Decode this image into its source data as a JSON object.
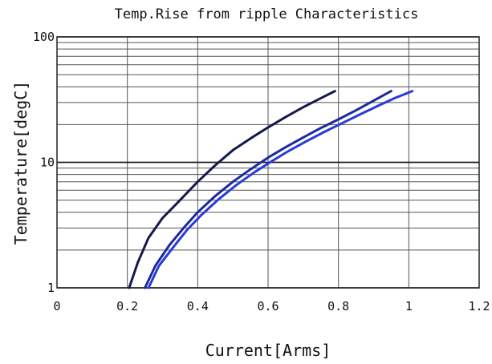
{
  "chart_data": {
    "type": "line",
    "title": "Temp.Rise from ripple Characteristics",
    "xlabel": "Current[Arms]",
    "ylabel": "Temperature[degC]",
    "xlim": [
      0,
      1.2
    ],
    "ylim": [
      1,
      100
    ],
    "yscale": "log",
    "grid": true,
    "x_ticks": [
      "0",
      "0.2",
      "0.4",
      "0.6",
      "0.8",
      "1",
      "1.2"
    ],
    "y_ticks": [
      "1",
      "10",
      "100"
    ],
    "series": [
      {
        "color": "#141a4e",
        "x": [
          0.205,
          0.23,
          0.26,
          0.3,
          0.35,
          0.4,
          0.45,
          0.5,
          0.55,
          0.6,
          0.65,
          0.7,
          0.75,
          0.79
        ],
        "y": [
          1.0,
          1.6,
          2.5,
          3.6,
          5.0,
          7.0,
          9.5,
          12.5,
          15.5,
          19.0,
          23.0,
          27.5,
          32.5,
          37.0
        ]
      },
      {
        "color": "#1c2a9a",
        "x": [
          0.25,
          0.28,
          0.32,
          0.36,
          0.4,
          0.45,
          0.5,
          0.55,
          0.6,
          0.65,
          0.7,
          0.75,
          0.8,
          0.85,
          0.9,
          0.95
        ],
        "y": [
          1.0,
          1.5,
          2.2,
          3.0,
          4.0,
          5.4,
          7.0,
          8.8,
          10.9,
          13.2,
          15.8,
          18.8,
          22.0,
          26.0,
          31.0,
          37.0
        ]
      },
      {
        "color": "#2a3ad8",
        "x": [
          0.26,
          0.29,
          0.33,
          0.37,
          0.41,
          0.46,
          0.51,
          0.56,
          0.61,
          0.66,
          0.71,
          0.76,
          0.81,
          0.86,
          0.91,
          0.96,
          1.01
        ],
        "y": [
          1.0,
          1.5,
          2.1,
          2.9,
          3.8,
          5.1,
          6.6,
          8.3,
          10.2,
          12.4,
          14.8,
          17.5,
          20.5,
          24.0,
          28.0,
          32.5,
          37.0
        ]
      }
    ]
  }
}
